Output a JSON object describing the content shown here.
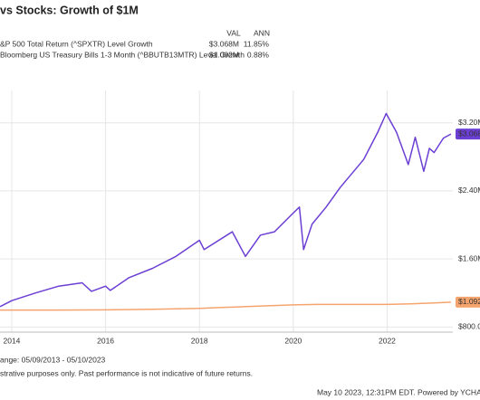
{
  "chart_data": {
    "type": "line",
    "title": "vs Stocks: Growth of $1M",
    "legend_headers": [
      "VAL",
      "ANN"
    ],
    "series": [
      {
        "name": "&P 500 Total Return (^SPXTR) Level Growth",
        "color": "#6c3fd4",
        "value_label": "$3.068M",
        "ann": "11.85%",
        "x": [
          2013.75,
          2014.0,
          2014.5,
          2015.0,
          2015.5,
          2015.7,
          2016.0,
          2016.1,
          2016.5,
          2017.0,
          2017.5,
          2018.0,
          2018.1,
          2018.7,
          2018.98,
          2019.3,
          2019.6,
          2020.0,
          2020.13,
          2020.22,
          2020.4,
          2020.7,
          2021.0,
          2021.5,
          2021.8,
          2021.98,
          2022.2,
          2022.45,
          2022.6,
          2022.78,
          2022.9,
          2023.0,
          2023.2,
          2023.36
        ],
        "values": [
          1040000,
          1110000,
          1200000,
          1280000,
          1320000,
          1220000,
          1280000,
          1230000,
          1380000,
          1490000,
          1630000,
          1820000,
          1710000,
          1920000,
          1630000,
          1880000,
          1920000,
          2140000,
          2210000,
          1710000,
          2010000,
          2210000,
          2440000,
          2770000,
          3090000,
          3310000,
          3090000,
          2710000,
          3030000,
          2630000,
          2900000,
          2850000,
          3020000,
          3068000
        ]
      },
      {
        "name": "Bloomberg US Treasury Bills 1-3 Month (^BBUTB13MTR) Level Growth",
        "color": "#f6a46e",
        "value_label": "$1.092M",
        "ann": "0.88%",
        "x": [
          2013.75,
          2015.0,
          2016.0,
          2017.0,
          2018.0,
          2019.0,
          2020.0,
          2020.5,
          2021.0,
          2022.0,
          2022.5,
          2023.0,
          2023.36
        ],
        "values": [
          1000000,
          1000000,
          1002000,
          1008000,
          1020000,
          1040000,
          1060000,
          1065000,
          1065000,
          1066000,
          1072000,
          1082000,
          1092000
        ]
      }
    ],
    "xlim": [
      2013.75,
      2023.4
    ],
    "xticks": [
      2014,
      2016,
      2018,
      2020,
      2022
    ],
    "ylim": [
      740000,
      3580000
    ],
    "yticks": [
      {
        "value": 800000,
        "label": "$800.00K"
      },
      {
        "value": 1600000,
        "label": "$1.60M"
      },
      {
        "value": 2400000,
        "label": "$2.40M"
      },
      {
        "value": 3200000,
        "label": "$3.20M"
      }
    ],
    "grid": true,
    "footer": [
      "ange: 05/09/2013 - 05/10/2023",
      "strative purposes only. Past performance is not indicative of future returns.",
      "May 10 2023, 12:31PM EDT. Powered by YCHA"
    ]
  }
}
